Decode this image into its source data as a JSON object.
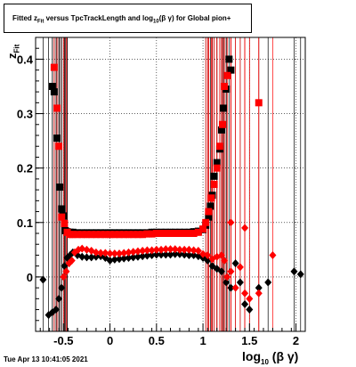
{
  "chart_data": {
    "type": "scatter",
    "title": "Fitted  z_Fit versus TpcTrackLength and log10(βγ) for Global pion+",
    "title_parts": {
      "prefix": "Fitted  z",
      "prefix_sub": "Fit",
      "middle": " versus TpcTrackLength and log",
      "middle_sub": "10",
      "suffix": "(β γ) for Global pion+"
    },
    "xlabel_parts": {
      "main": "log",
      "sub": "10",
      "rest": " (β γ)"
    },
    "ylabel_parts": {
      "main": "z",
      "sub": "Fit"
    },
    "xlim": [
      -0.8,
      2.1
    ],
    "ylim": [
      -0.1,
      0.44
    ],
    "x_ticks": [
      -0.5,
      0,
      0.5,
      1,
      1.5,
      2
    ],
    "x_tick_labels": [
      "-0.5",
      "0",
      "0.5",
      "1",
      "1.5",
      "2"
    ],
    "y_ticks": [
      0,
      0.1,
      0.2,
      0.3,
      0.4
    ],
    "y_tick_labels": [
      "0",
      "0.1",
      "0.2",
      "0.3",
      "0.4"
    ],
    "grid": true,
    "series": [
      {
        "marker": "square",
        "color": "#000000",
        "points": [
          [
            -0.62,
            0.35
          ],
          [
            -0.6,
            0.34
          ],
          [
            -0.57,
            0.255
          ],
          [
            -0.54,
            0.165
          ],
          [
            -0.52,
            0.125
          ],
          [
            -0.5,
            0.112
          ],
          [
            -0.48,
            0.085
          ],
          [
            -0.46,
            0.083
          ],
          [
            -0.43,
            0.082
          ],
          [
            -0.4,
            0.082
          ],
          [
            -0.35,
            0.081
          ],
          [
            -0.3,
            0.081
          ],
          [
            -0.25,
            0.081
          ],
          [
            -0.2,
            0.081
          ],
          [
            -0.15,
            0.081
          ],
          [
            -0.1,
            0.081
          ],
          [
            -0.05,
            0.081
          ],
          [
            0.0,
            0.081
          ],
          [
            0.05,
            0.081
          ],
          [
            0.1,
            0.081
          ],
          [
            0.15,
            0.081
          ],
          [
            0.2,
            0.081
          ],
          [
            0.25,
            0.081
          ],
          [
            0.3,
            0.081
          ],
          [
            0.35,
            0.081
          ],
          [
            0.4,
            0.081
          ],
          [
            0.45,
            0.082
          ],
          [
            0.5,
            0.082
          ],
          [
            0.55,
            0.082
          ],
          [
            0.6,
            0.082
          ],
          [
            0.65,
            0.082
          ],
          [
            0.7,
            0.082
          ],
          [
            0.75,
            0.082
          ],
          [
            0.8,
            0.082
          ],
          [
            0.85,
            0.082
          ],
          [
            0.9,
            0.083
          ],
          [
            0.95,
            0.084
          ],
          [
            1.0,
            0.087
          ],
          [
            1.03,
            0.095
          ],
          [
            1.06,
            0.11
          ],
          [
            1.08,
            0.13
          ],
          [
            1.1,
            0.15
          ],
          [
            1.12,
            0.185
          ],
          [
            1.15,
            0.21
          ],
          [
            1.18,
            0.235
          ],
          [
            1.2,
            0.27
          ],
          [
            1.22,
            0.31
          ],
          [
            1.25,
            0.345
          ],
          [
            1.28,
            0.4
          ],
          [
            1.3,
            0.38
          ]
        ]
      },
      {
        "marker": "square",
        "color": "#ff0000",
        "points": [
          [
            -0.6,
            0.385
          ],
          [
            -0.57,
            0.31
          ],
          [
            -0.55,
            0.24
          ],
          [
            -0.52,
            0.11
          ],
          [
            -0.49,
            0.098
          ],
          [
            -0.46,
            0.082
          ],
          [
            -0.43,
            0.078
          ],
          [
            -0.4,
            0.078
          ],
          [
            -0.35,
            0.078
          ],
          [
            -0.3,
            0.078
          ],
          [
            -0.25,
            0.078
          ],
          [
            -0.2,
            0.078
          ],
          [
            -0.15,
            0.078
          ],
          [
            -0.1,
            0.078
          ],
          [
            -0.05,
            0.078
          ],
          [
            0.0,
            0.078
          ],
          [
            0.05,
            0.078
          ],
          [
            0.1,
            0.078
          ],
          [
            0.15,
            0.078
          ],
          [
            0.2,
            0.078
          ],
          [
            0.25,
            0.078
          ],
          [
            0.3,
            0.078
          ],
          [
            0.35,
            0.078
          ],
          [
            0.4,
            0.079
          ],
          [
            0.45,
            0.079
          ],
          [
            0.5,
            0.08
          ],
          [
            0.55,
            0.08
          ],
          [
            0.6,
            0.08
          ],
          [
            0.65,
            0.08
          ],
          [
            0.7,
            0.08
          ],
          [
            0.75,
            0.08
          ],
          [
            0.8,
            0.08
          ],
          [
            0.85,
            0.08
          ],
          [
            0.9,
            0.08
          ],
          [
            0.95,
            0.082
          ],
          [
            1.0,
            0.088
          ],
          [
            1.03,
            0.1
          ],
          [
            1.06,
            0.12
          ],
          [
            1.09,
            0.145
          ],
          [
            1.12,
            0.17
          ],
          [
            1.15,
            0.2
          ],
          [
            1.18,
            0.24
          ],
          [
            1.21,
            0.28
          ],
          [
            1.23,
            0.35
          ],
          [
            1.26,
            0.37
          ],
          [
            1.6,
            0.32
          ]
        ]
      },
      {
        "marker": "diamond",
        "color": "#000000",
        "points": [
          [
            -0.72,
            -0.005
          ],
          [
            -0.66,
            -0.07
          ],
          [
            -0.62,
            -0.065
          ],
          [
            -0.58,
            -0.06
          ],
          [
            -0.55,
            -0.04
          ],
          [
            -0.52,
            -0.02
          ],
          [
            -0.49,
            0.02
          ],
          [
            -0.46,
            0.035
          ],
          [
            -0.43,
            0.04
          ],
          [
            -0.4,
            0.045
          ],
          [
            -0.35,
            0.04
          ],
          [
            -0.3,
            0.037
          ],
          [
            -0.25,
            0.036
          ],
          [
            -0.2,
            0.036
          ],
          [
            -0.15,
            0.037
          ],
          [
            -0.1,
            0.038
          ],
          [
            -0.05,
            0.035
          ],
          [
            0.0,
            0.03
          ],
          [
            0.05,
            0.032
          ],
          [
            0.1,
            0.033
          ],
          [
            0.15,
            0.034
          ],
          [
            0.2,
            0.035
          ],
          [
            0.25,
            0.036
          ],
          [
            0.3,
            0.037
          ],
          [
            0.35,
            0.038
          ],
          [
            0.4,
            0.039
          ],
          [
            0.45,
            0.04
          ],
          [
            0.5,
            0.041
          ],
          [
            0.55,
            0.041
          ],
          [
            0.6,
            0.041
          ],
          [
            0.65,
            0.041
          ],
          [
            0.7,
            0.042
          ],
          [
            0.75,
            0.042
          ],
          [
            0.8,
            0.041
          ],
          [
            0.85,
            0.04
          ],
          [
            0.9,
            0.04
          ],
          [
            0.95,
            0.038
          ],
          [
            1.0,
            0.035
          ],
          [
            1.05,
            0.03
          ],
          [
            1.1,
            0.02
          ],
          [
            1.15,
            0.015
          ],
          [
            1.2,
            0.01
          ],
          [
            1.25,
            -0.01
          ],
          [
            1.3,
            -0.02
          ],
          [
            1.35,
            0.025
          ],
          [
            1.4,
            -0.01
          ],
          [
            1.45,
            -0.05
          ],
          [
            1.5,
            -0.06
          ],
          [
            1.6,
            -0.02
          ],
          [
            1.7,
            -0.01
          ],
          [
            1.98,
            0.01
          ],
          [
            2.05,
            0.005
          ]
        ]
      },
      {
        "marker": "diamond",
        "color": "#ff0000",
        "points": [
          [
            -0.5,
            0.0
          ],
          [
            -0.47,
            0.01
          ],
          [
            -0.44,
            0.025
          ],
          [
            -0.41,
            0.03
          ],
          [
            -0.38,
            0.045
          ],
          [
            -0.34,
            0.05
          ],
          [
            -0.3,
            0.052
          ],
          [
            -0.25,
            0.05
          ],
          [
            -0.2,
            0.048
          ],
          [
            -0.15,
            0.045
          ],
          [
            -0.1,
            0.044
          ],
          [
            -0.05,
            0.044
          ],
          [
            0.0,
            0.043
          ],
          [
            0.05,
            0.043
          ],
          [
            0.1,
            0.043
          ],
          [
            0.15,
            0.044
          ],
          [
            0.2,
            0.045
          ],
          [
            0.25,
            0.046
          ],
          [
            0.3,
            0.047
          ],
          [
            0.35,
            0.048
          ],
          [
            0.4,
            0.049
          ],
          [
            0.45,
            0.049
          ],
          [
            0.5,
            0.05
          ],
          [
            0.55,
            0.05
          ],
          [
            0.6,
            0.051
          ],
          [
            0.65,
            0.051
          ],
          [
            0.7,
            0.051
          ],
          [
            0.75,
            0.05
          ],
          [
            0.8,
            0.05
          ],
          [
            0.85,
            0.05
          ],
          [
            0.9,
            0.049
          ],
          [
            0.95,
            0.048
          ],
          [
            1.0,
            0.042
          ],
          [
            1.05,
            0.04
          ],
          [
            1.1,
            0.033
          ],
          [
            1.15,
            0.037
          ],
          [
            1.2,
            0.04
          ],
          [
            1.23,
            0.03
          ],
          [
            1.26,
            0.0
          ],
          [
            1.3,
            0.01
          ],
          [
            1.35,
            -0.02
          ],
          [
            1.4,
            0.018
          ],
          [
            1.45,
            -0.03
          ],
          [
            1.5,
            -0.04
          ],
          [
            1.6,
            -0.03
          ],
          [
            1.75,
            0.04
          ],
          [
            1.3,
            0.1
          ],
          [
            1.45,
            0.09
          ]
        ]
      }
    ]
  },
  "footer": {
    "timestamp": "Tue Apr 13 10:41:05 2021"
  }
}
